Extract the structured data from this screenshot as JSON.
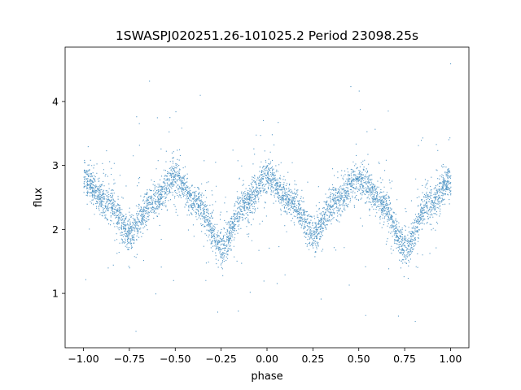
{
  "chart_data": {
    "type": "scatter",
    "title": "1SWASPJ020251.26-101025.2 Period 23098.25s",
    "xlabel": "phase",
    "ylabel": "flux",
    "xlim": [
      -1.1,
      1.1
    ],
    "ylim": [
      0.15,
      4.85
    ],
    "xticks": [
      -1.0,
      -0.75,
      -0.5,
      -0.25,
      0.0,
      0.25,
      0.5,
      0.75,
      1.0
    ],
    "xtick_labels": [
      "−1.00",
      "−0.75",
      "−0.50",
      "−0.25",
      "0.00",
      "0.25",
      "0.50",
      "0.75",
      "1.00"
    ],
    "yticks": [
      1,
      2,
      3,
      4
    ],
    "ytick_labels": [
      "1",
      "2",
      "3",
      "4"
    ],
    "grid": false,
    "legend": "none",
    "marker_color": "#1f77b4",
    "series": [
      {
        "description_points": "phase-folded light curve, envelope of dense point cloud",
        "x": [
          -1.0,
          -0.875,
          -0.75,
          -0.625,
          -0.5,
          -0.375,
          -0.25,
          -0.125,
          0.0,
          0.125,
          0.25,
          0.375,
          0.5,
          0.625,
          0.75,
          0.875,
          1.0
        ],
        "y": [
          2.78,
          2.45,
          1.95,
          2.45,
          2.8,
          2.4,
          1.72,
          2.4,
          2.8,
          2.45,
          1.95,
          2.45,
          2.8,
          2.4,
          1.72,
          2.4,
          2.78
        ]
      }
    ]
  }
}
